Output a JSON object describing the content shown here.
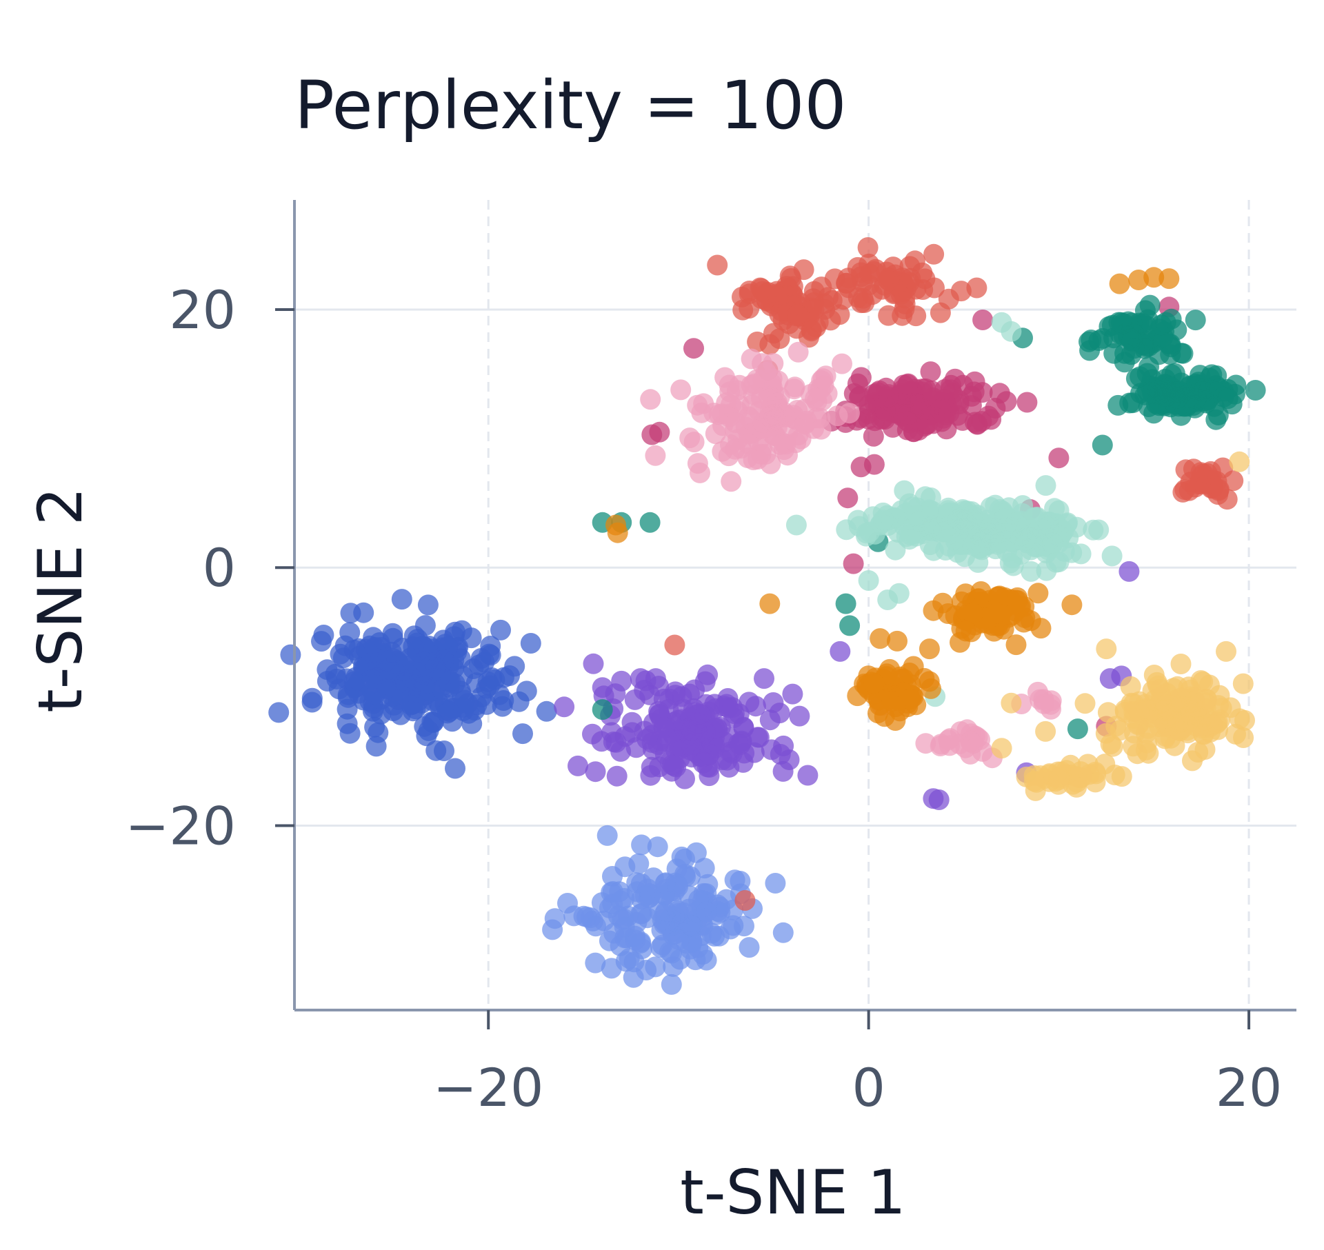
{
  "chart_data": {
    "type": "scatter",
    "title": "Perplexity = 100",
    "xlabel": "t-SNE 1",
    "ylabel": "t-SNE 2",
    "xlim": [
      -30.2,
      22.5
    ],
    "ylim": [
      -34.3,
      28.5
    ],
    "xticks": [
      -20,
      0,
      20
    ],
    "yticks": [
      -20,
      0,
      20
    ],
    "xtick_labels": [
      "−20",
      "0",
      "20"
    ],
    "ytick_labels": [
      "−20",
      "0",
      "20"
    ],
    "grid": {
      "horizontal": "solid",
      "vertical": "dashed"
    },
    "legend": "none",
    "series": [
      {
        "color": "#3a5fcd",
        "clusters": [
          {
            "cx": -24,
            "cy": -8.5,
            "sx": 3.2,
            "sy": 2.6,
            "n": 260
          }
        ],
        "points": [
          [
            -19.2,
            -10.3
          ],
          [
            -25.8,
            -12.8
          ]
        ]
      },
      {
        "color": "#6f91ea",
        "clusters": [
          {
            "cx": -10.5,
            "cy": -27.2,
            "sx": 2.7,
            "sy": 2.7,
            "n": 160
          }
        ],
        "points": [
          [
            -16.5,
            -27.2
          ],
          [
            -15.5,
            -27.0
          ],
          [
            -14.5,
            -27.4
          ],
          [
            -11.7,
            -31.2
          ]
        ]
      },
      {
        "color": "#7b4fd3",
        "clusters": [
          {
            "cx": -9.2,
            "cy": -12.8,
            "sx": 3.0,
            "sy": 2.2,
            "n": 170
          }
        ],
        "points": [
          [
            -14.0,
            -9.3
          ],
          [
            -13.0,
            -8.8
          ],
          [
            -12.0,
            -8.6
          ],
          [
            -11.2,
            -8.6
          ],
          [
            -4.5,
            -15.8
          ],
          [
            -3.2,
            -16.1
          ],
          [
            -1.5,
            -6.5
          ],
          [
            -5.5,
            -8.6
          ],
          [
            -4.0,
            -9.8
          ],
          [
            3.4,
            -17.9
          ],
          [
            3.7,
            -18.0
          ],
          [
            8.3,
            -15.9
          ],
          [
            12.7,
            -8.6
          ],
          [
            13.3,
            -8.4
          ],
          [
            13.7,
            -0.3
          ]
        ]
      },
      {
        "color": "#df5a4e",
        "clusters": [
          {
            "cx": -4.0,
            "cy": 20.6,
            "sx": 2.0,
            "sy": 1.8,
            "n": 80
          },
          {
            "cx": 1.5,
            "cy": 22.0,
            "sx": 2.2,
            "sy": 1.6,
            "n": 60
          },
          {
            "cx": 18.0,
            "cy": 6.8,
            "sx": 1.0,
            "sy": 0.8,
            "n": 30
          }
        ],
        "points": [
          [
            -5.2,
            17.3
          ],
          [
            -5.3,
            15.3
          ],
          [
            -10.2,
            -6.0
          ],
          [
            -6.5,
            -25.8
          ]
        ]
      },
      {
        "color": "#c43b76",
        "clusters": [
          {
            "cx": 2.5,
            "cy": 12.5,
            "sx": 2.6,
            "sy": 1.4,
            "n": 150
          }
        ],
        "points": [
          [
            -9.2,
            17.0
          ],
          [
            -11.0,
            10.5
          ],
          [
            -11.4,
            10.3
          ],
          [
            -0.4,
            7.8
          ],
          [
            0.3,
            8.0
          ],
          [
            -1.1,
            5.4
          ],
          [
            -0.8,
            0.3
          ],
          [
            8.5,
            4.5
          ],
          [
            10.0,
            8.5
          ],
          [
            12.5,
            -12.3
          ],
          [
            15.8,
            20.2
          ],
          [
            6.0,
            19.2
          ]
        ]
      },
      {
        "color": "#ef9fbd",
        "clusters": [
          {
            "cx": -5.5,
            "cy": 11.5,
            "sx": 2.3,
            "sy": 2.4,
            "n": 140
          },
          {
            "cx": 4.8,
            "cy": -13.3,
            "sx": 1.2,
            "sy": 0.8,
            "n": 20
          },
          {
            "cx": 9.0,
            "cy": -10.5,
            "sx": 0.6,
            "sy": 0.5,
            "n": 8
          }
        ],
        "points": [
          [
            -3.7,
            16.7
          ],
          [
            -1.4,
            15.8
          ],
          [
            0.7,
            -10.7
          ]
        ]
      },
      {
        "color": "#0d8a78",
        "clusters": [
          {
            "cx": 14.5,
            "cy": 18.0,
            "sx": 1.4,
            "sy": 1.2,
            "n": 60
          },
          {
            "cx": 16.5,
            "cy": 13.5,
            "sx": 1.9,
            "sy": 1.1,
            "n": 110
          }
        ],
        "points": [
          [
            -14.0,
            3.5
          ],
          [
            -13.0,
            3.5
          ],
          [
            -11.5,
            3.5
          ],
          [
            0.5,
            2.0
          ],
          [
            -1.2,
            -2.8
          ],
          [
            -1.0,
            -4.5
          ],
          [
            -14.0,
            -11.0
          ],
          [
            11.0,
            -12.5
          ],
          [
            12.3,
            9.5
          ],
          [
            8.1,
            17.8
          ]
        ]
      },
      {
        "color": "#9fdccf",
        "clusters": [
          {
            "cx": 3.5,
            "cy": 3.4,
            "sx": 2.8,
            "sy": 1.3,
            "n": 120
          },
          {
            "cx": 8.0,
            "cy": 2.5,
            "sx": 2.5,
            "sy": 1.5,
            "n": 110
          }
        ],
        "points": [
          [
            -3.8,
            3.3
          ],
          [
            0.0,
            -1.0
          ],
          [
            1.0,
            -2.5
          ],
          [
            1.6,
            -2.0
          ],
          [
            12.8,
            0.9
          ],
          [
            7.0,
            19.0
          ],
          [
            7.5,
            18.3
          ],
          [
            3.5,
            -10.0
          ],
          [
            0.5,
            -9.0
          ]
        ]
      },
      {
        "color": "#e5850c",
        "clusters": [
          {
            "cx": 6.6,
            "cy": -3.4,
            "sx": 1.6,
            "sy": 1.0,
            "n": 90
          },
          {
            "cx": 1.0,
            "cy": -9.5,
            "sx": 1.2,
            "sy": 1.2,
            "n": 60
          }
        ],
        "points": [
          [
            -13.3,
            3.3
          ],
          [
            -13.2,
            2.7
          ],
          [
            -5.2,
            -2.8
          ],
          [
            3.2,
            -6.3
          ],
          [
            4.8,
            -5.8
          ],
          [
            1.5,
            -5.7
          ],
          [
            0.6,
            -5.5
          ],
          [
            14.2,
            22.3
          ],
          [
            15.0,
            22.5
          ],
          [
            15.8,
            22.4
          ],
          [
            13.2,
            22.0
          ]
        ]
      },
      {
        "color": "#f5c66b",
        "clusters": [
          {
            "cx": 16.0,
            "cy": -11.3,
            "sx": 2.2,
            "sy": 2.0,
            "n": 140
          },
          {
            "cx": 10.5,
            "cy": -16.2,
            "sx": 1.6,
            "sy": 0.6,
            "n": 35
          }
        ],
        "points": [
          [
            18.8,
            -6.5
          ],
          [
            19.7,
            -9.0
          ],
          [
            19.5,
            8.2
          ],
          [
            12.5,
            -6.3
          ],
          [
            9.3,
            -12.7
          ],
          [
            7.0,
            -14.0
          ],
          [
            7.5,
            -10.5
          ]
        ]
      }
    ]
  }
}
